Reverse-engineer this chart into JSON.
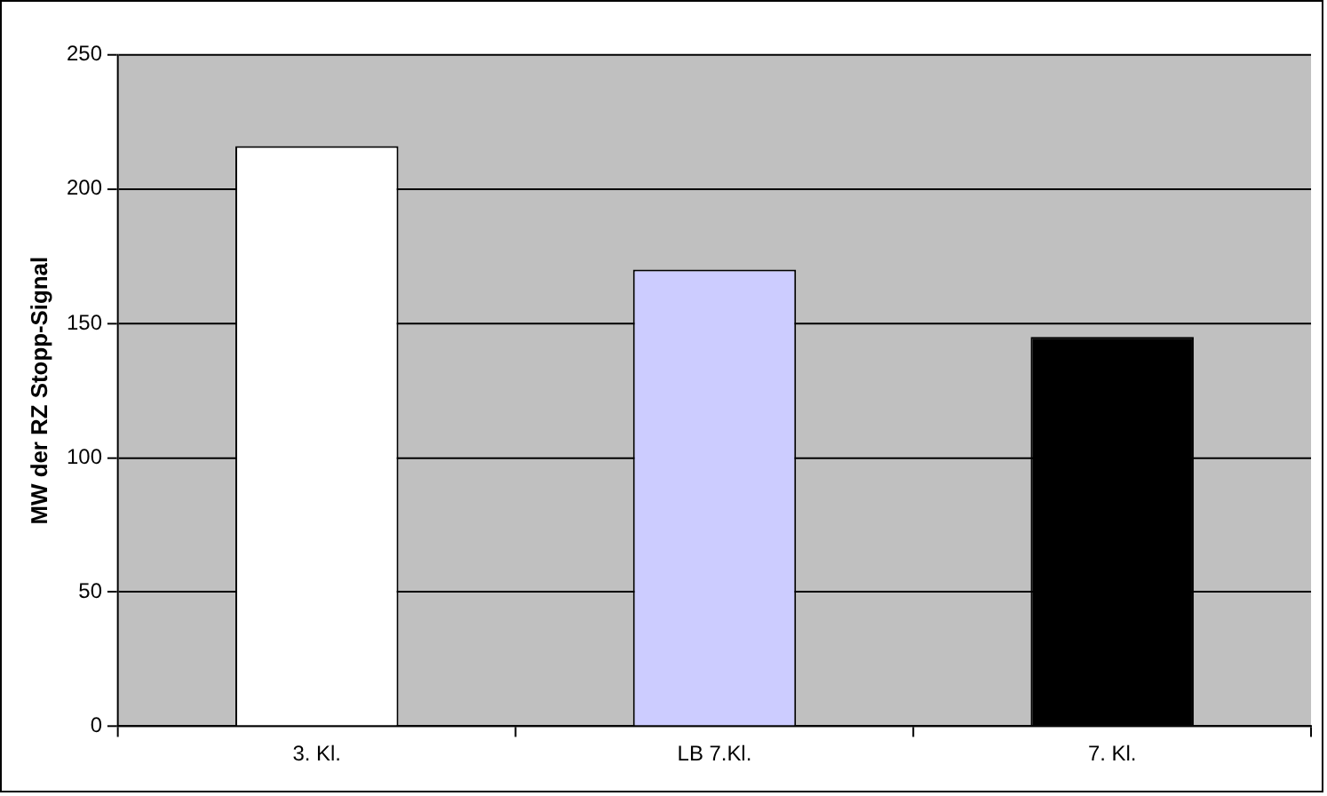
{
  "chart_data": {
    "type": "bar",
    "ylabel": "MW der RZ Stopp-Signal",
    "categories": [
      "3. Kl.",
      "LB 7.Kl.",
      "7. Kl."
    ],
    "values": [
      216,
      170,
      145
    ],
    "colors": [
      "#ffffff",
      "#ccccff",
      "#000000"
    ],
    "ylim": [
      0,
      250
    ],
    "yticks": [
      0,
      50,
      100,
      150,
      200,
      250
    ],
    "grid": "y",
    "legend": false
  }
}
